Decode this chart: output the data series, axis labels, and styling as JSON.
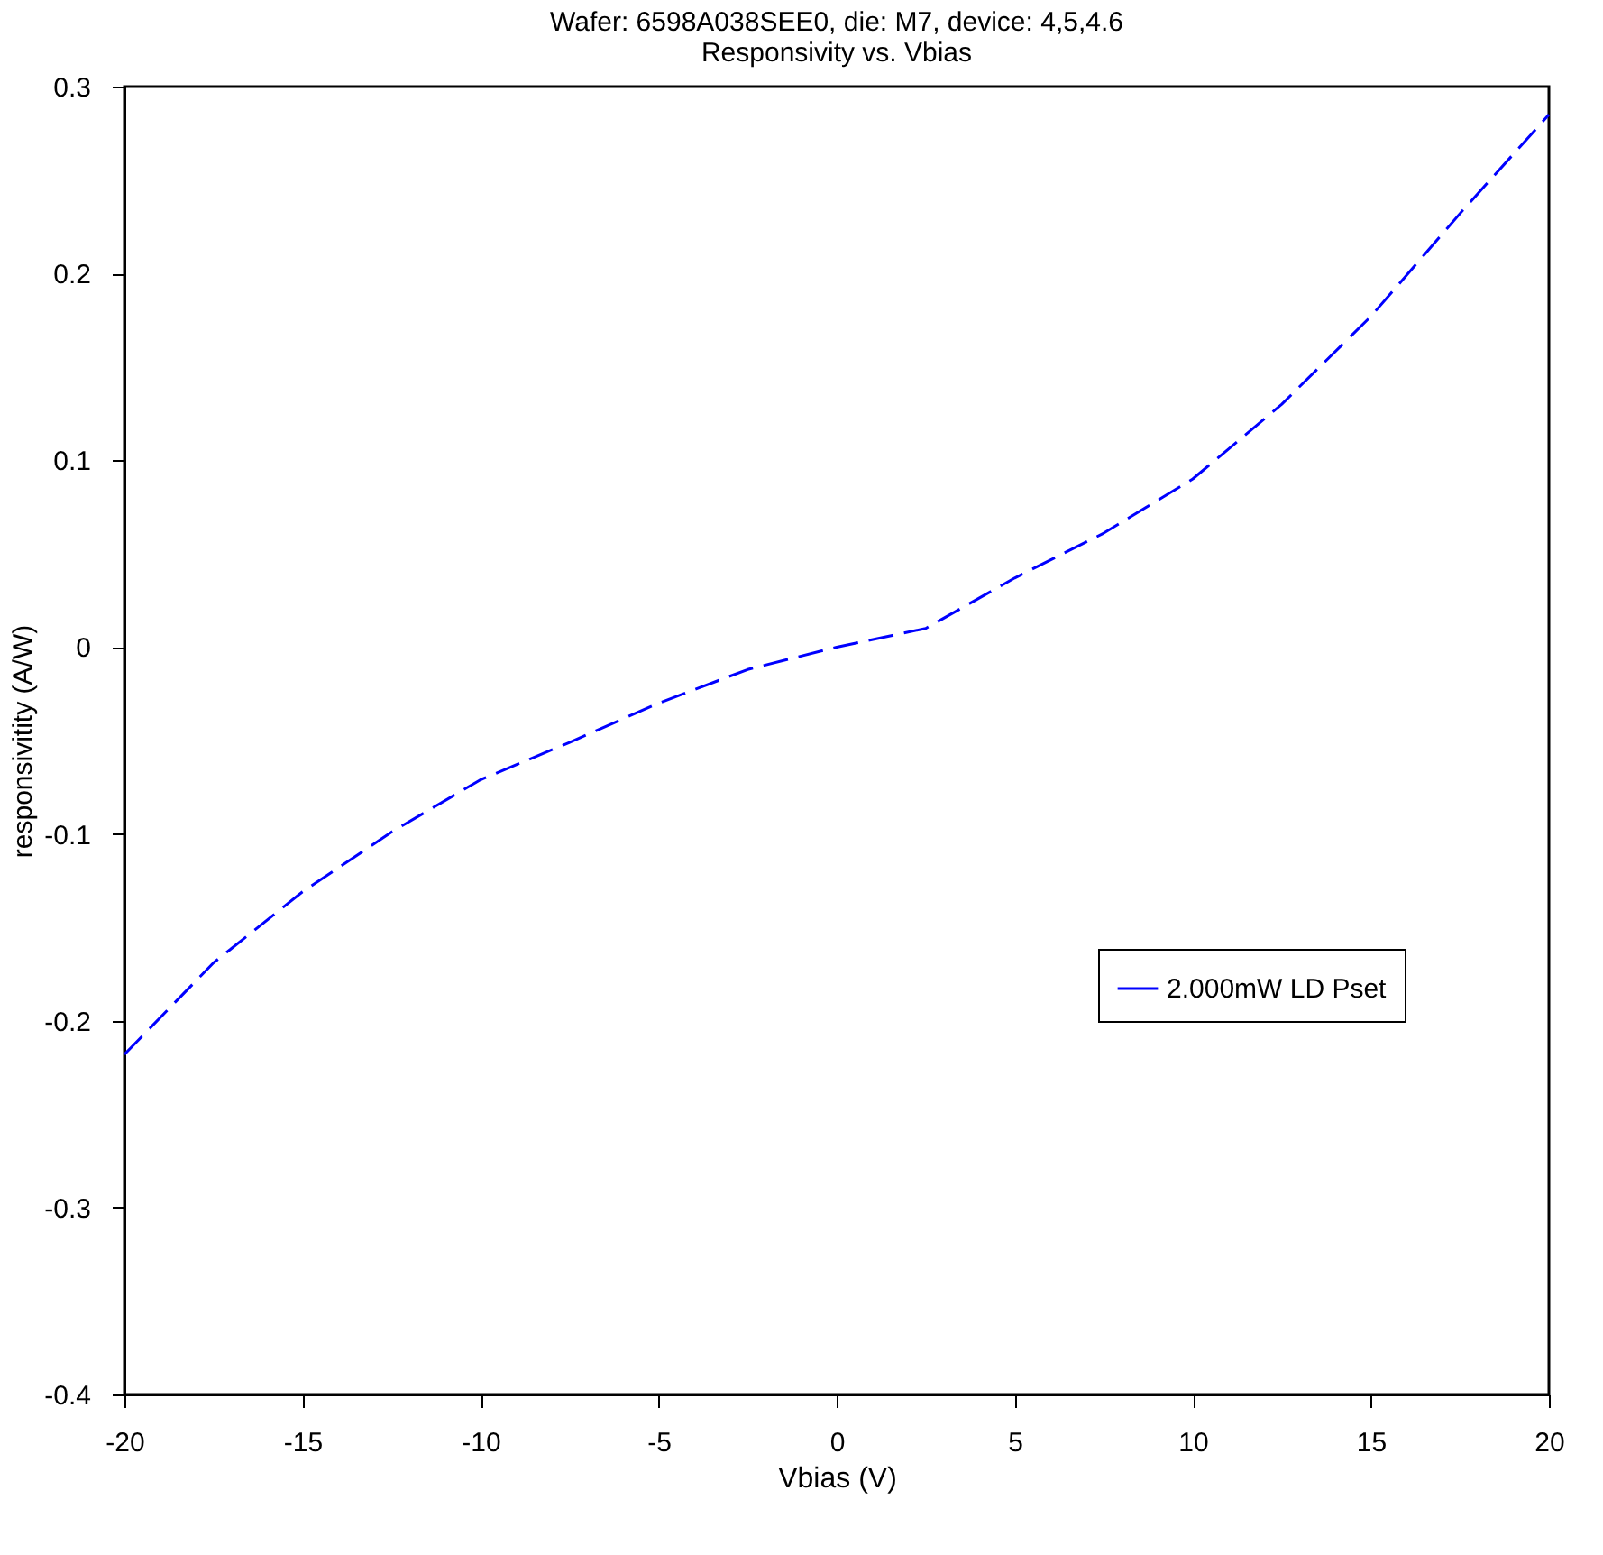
{
  "chart_data": {
    "type": "line",
    "title": [
      "Wafer: 6598A038SEE0, die: M7, device: 4,5,4.6",
      "Responsivity vs. Vbias"
    ],
    "xlabel": "Vbias (V)",
    "ylabel": "responsivitity (A/W)",
    "x": [
      -20,
      -17.5,
      -15,
      -12.5,
      -10,
      -7.5,
      -5,
      -2.5,
      0,
      2.5,
      5,
      7.5,
      10,
      12.5,
      15,
      17.5,
      20
    ],
    "series": [
      {
        "name": "2.000mW LD Pset",
        "color": "#0000ff",
        "values": [
          -0.218,
          -0.169,
          -0.131,
          -0.099,
          -0.071,
          -0.051,
          -0.03,
          -0.012,
          0,
          0.01,
          0.037,
          0.061,
          0.09,
          0.13,
          0.177,
          0.232,
          0.285
        ]
      }
    ],
    "xlim": [
      -20,
      20
    ],
    "xticks": [
      -20,
      -15,
      -10,
      -5,
      0,
      5,
      10,
      15,
      20
    ],
    "ylim": [
      -0.4,
      0.3
    ],
    "yticks": [
      -0.4,
      -0.3,
      -0.2,
      -0.1,
      0,
      0.1,
      0.2,
      0.3
    ],
    "grid": false,
    "legend": "right",
    "line_style": "dashed",
    "marker": "none"
  }
}
